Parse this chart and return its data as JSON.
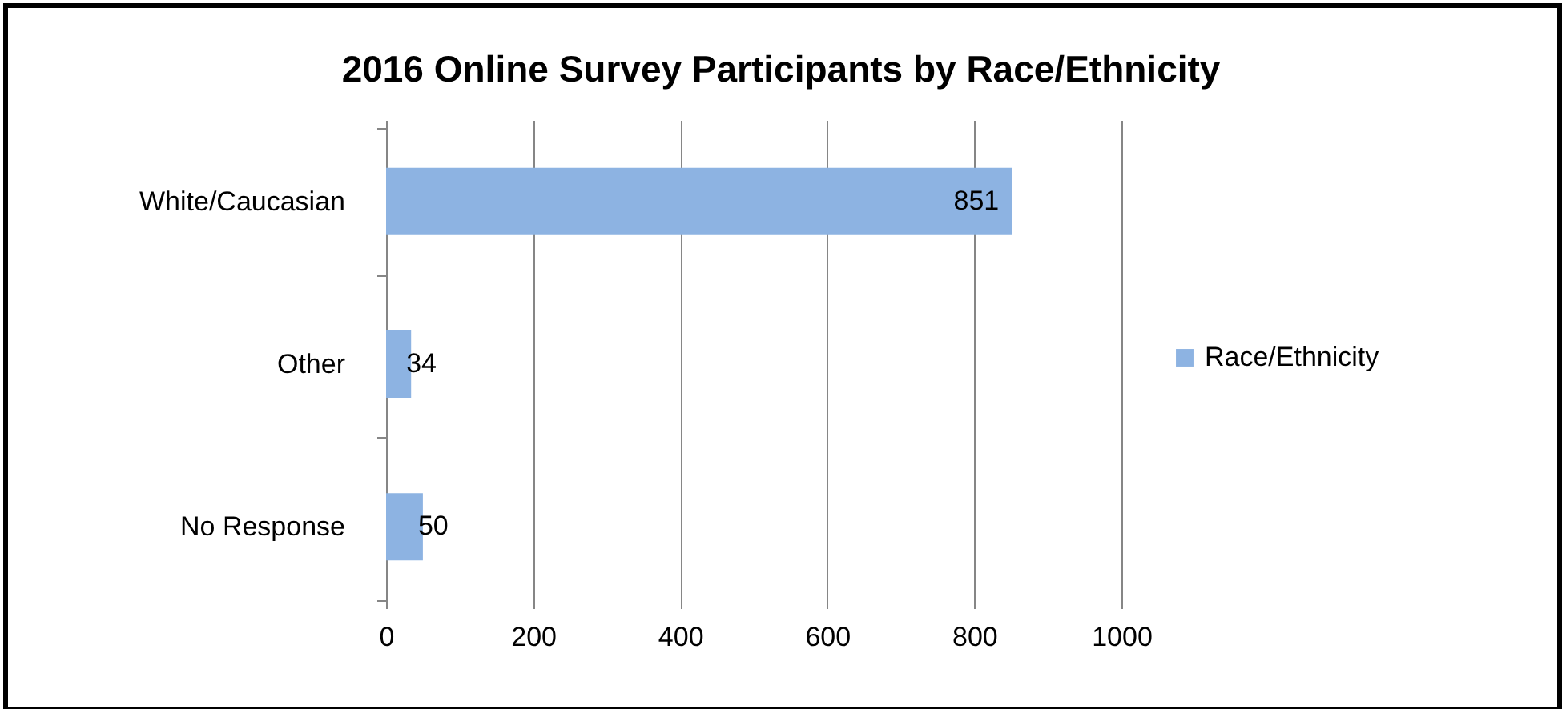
{
  "chart_data": {
    "type": "bar",
    "orientation": "horizontal",
    "title": "2016 Online Survey Participants by Race/Ethnicity",
    "categories": [
      "White/Caucasian",
      "Other",
      "No Response"
    ],
    "series": [
      {
        "name": "Race/Ethnicity",
        "color": "#8db3e2",
        "values": [
          851,
          34,
          50
        ]
      }
    ],
    "xlim": [
      0,
      1000
    ],
    "xticks": [
      0,
      200,
      400,
      600,
      800,
      1000
    ],
    "grid": "x",
    "legend": "right",
    "data_labels": true
  }
}
